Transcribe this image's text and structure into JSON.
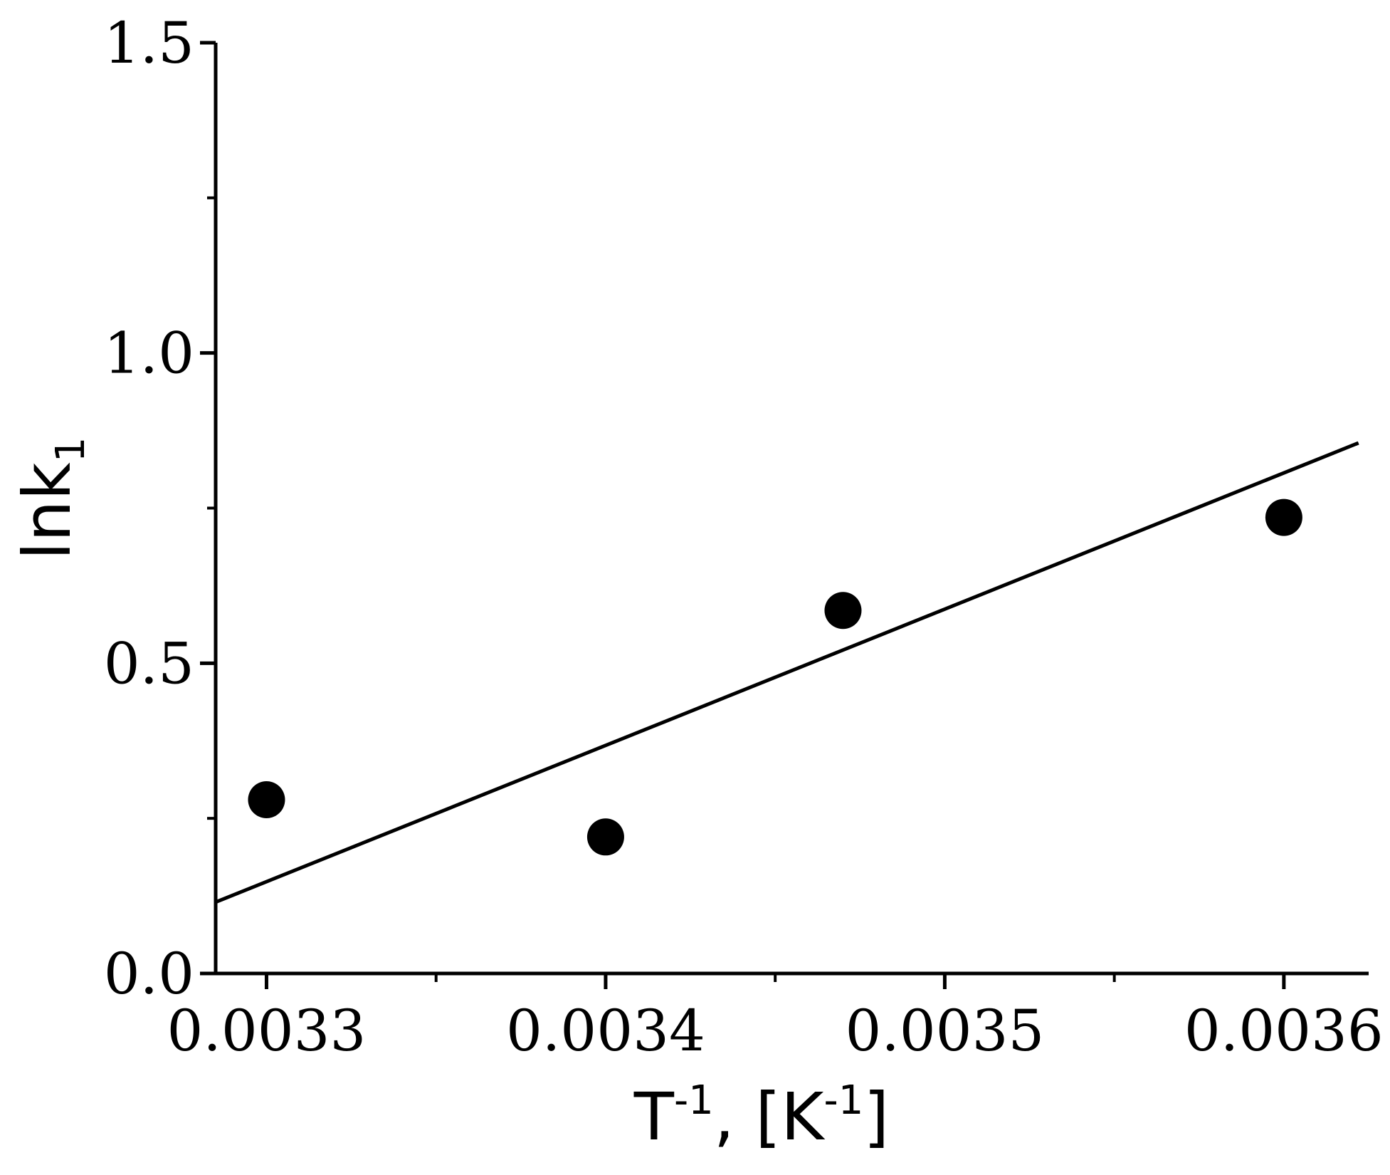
{
  "chart_data": {
    "type": "scatter",
    "xlabel": {
      "text": "T",
      "sup": "-1",
      "after": ", [K",
      "unit_sup": "-1",
      "close": "]"
    },
    "ylabel": {
      "text": "lnk",
      "sub": "1"
    },
    "xlim": [
      0.003285,
      0.003625
    ],
    "ylim": [
      0.0,
      1.5
    ],
    "x_ticks": [
      0.0033,
      0.0034,
      0.0035,
      0.0036
    ],
    "x_tick_labels": [
      "0.0033",
      "0.0034",
      "0.0035",
      "0.0036"
    ],
    "x_minor_ticks": [
      0.00335,
      0.00345,
      0.00355
    ],
    "y_ticks": [
      0.0,
      0.5,
      1.0,
      1.5
    ],
    "y_tick_labels": [
      "0.0",
      "0.5",
      "1.0",
      "1.5"
    ],
    "y_minor_ticks": [
      0.25,
      0.75,
      1.25
    ],
    "points": [
      {
        "x": 0.0033,
        "y": 0.28
      },
      {
        "x": 0.0034,
        "y": 0.22
      },
      {
        "x": 0.00347,
        "y": 0.585
      },
      {
        "x": 0.0036,
        "y": 0.735
      }
    ],
    "fit_line": {
      "x": [
        0.003285,
        0.003622
      ],
      "y": [
        0.115,
        0.855
      ]
    },
    "grid": false,
    "legend": "none",
    "colors": {
      "points": "#000000",
      "line": "#000000",
      "axes": "#000000"
    }
  }
}
